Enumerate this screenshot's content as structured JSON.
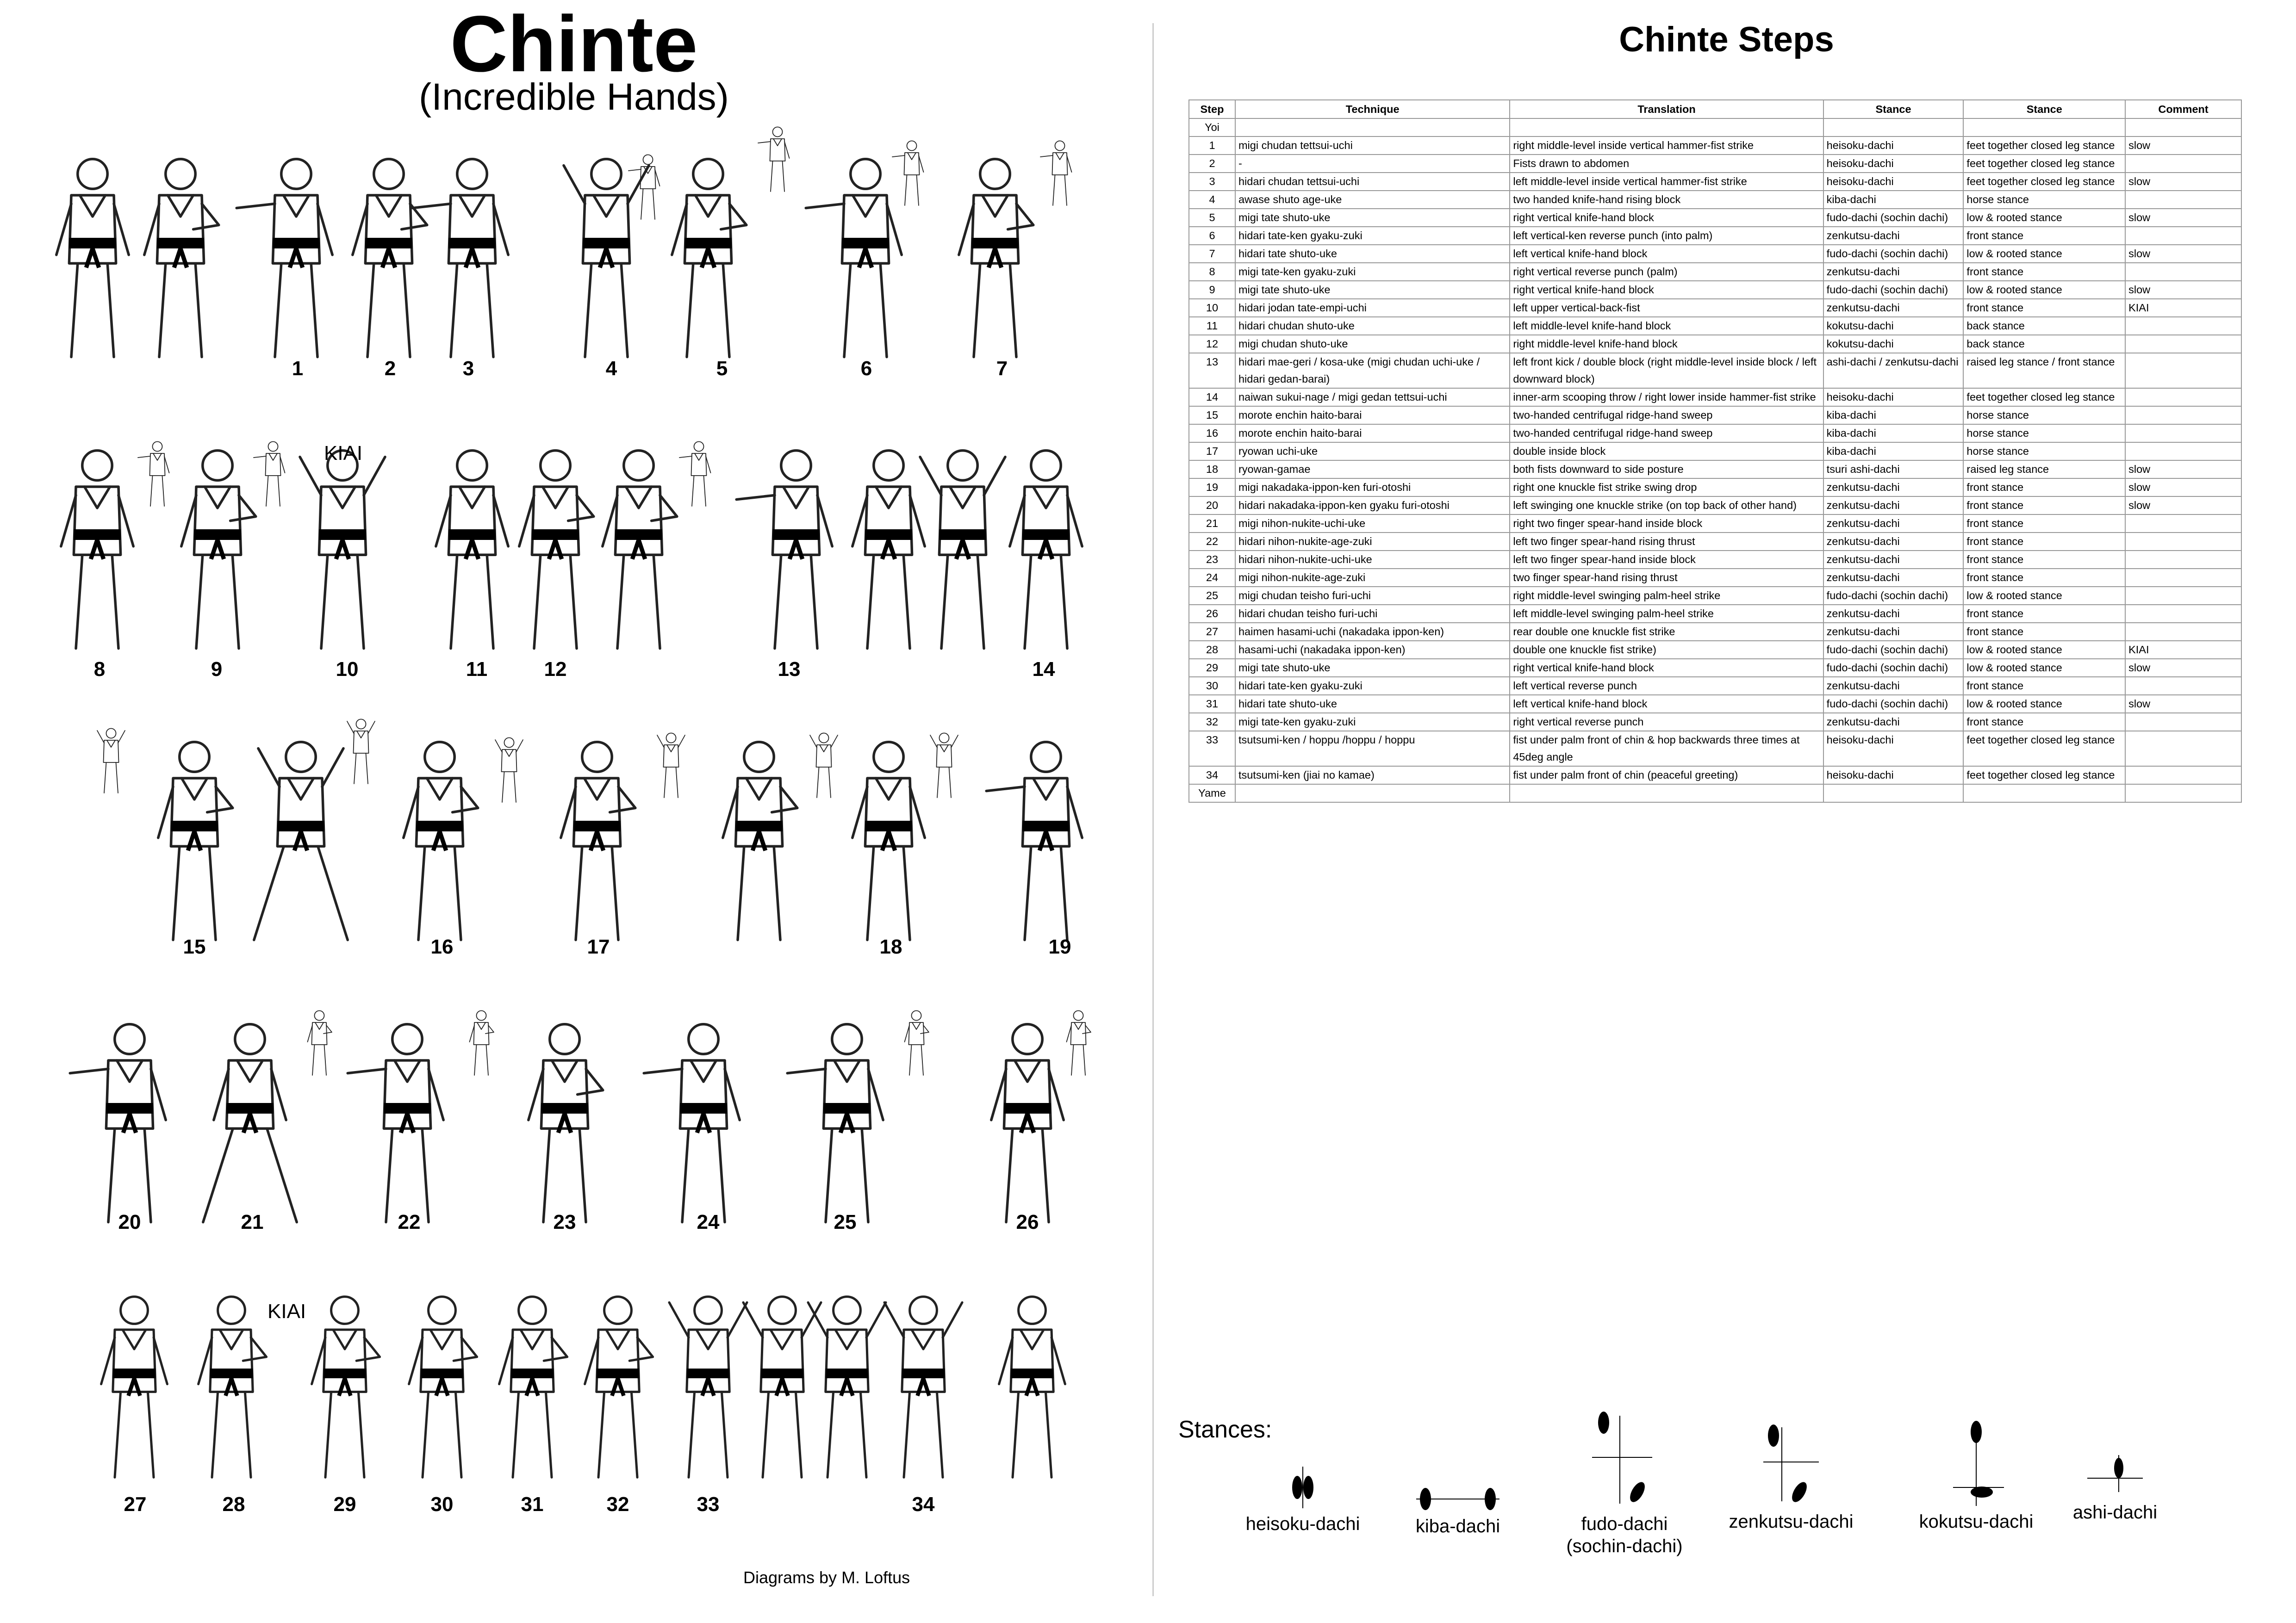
{
  "kata": {
    "title": "Chinte",
    "subtitle": "(Incredible Hands)",
    "credit": "Diagrams by M. Loftus",
    "kiai_label": "KIAI",
    "diagram_numbers": [
      "1",
      "2",
      "3",
      "4",
      "5",
      "6",
      "7",
      "8",
      "9",
      "10",
      "11",
      "12",
      "13",
      "14",
      "15",
      "16",
      "17",
      "18",
      "19",
      "20",
      "21",
      "22",
      "23",
      "24",
      "25",
      "26",
      "27",
      "28",
      "29",
      "30",
      "31",
      "32",
      "33",
      "34"
    ]
  },
  "steps": {
    "title": "Chinte Steps",
    "headers": [
      "Step",
      "Technique",
      "Translation",
      "Stance",
      "Stance",
      "Comment"
    ],
    "rows": [
      [
        "Yoi",
        "",
        "",
        "",
        "",
        ""
      ],
      [
        "1",
        "migi chudan tettsui-uchi",
        "right middle-level inside vertical hammer-fist strike",
        "heisoku-dachi",
        "feet together closed leg stance",
        "slow"
      ],
      [
        "2",
        "-",
        "Fists drawn to abdomen",
        "heisoku-dachi",
        "feet together closed leg stance",
        ""
      ],
      [
        "3",
        "hidari chudan tettsui-uchi",
        "left middle-level inside vertical hammer-fist strike",
        "heisoku-dachi",
        "feet together closed leg stance",
        "slow"
      ],
      [
        "4",
        "awase shuto age-uke",
        "two handed knife-hand rising block",
        "kiba-dachi",
        "horse stance",
        ""
      ],
      [
        "5",
        "migi tate shuto-uke",
        "right vertical knife-hand block",
        "fudo-dachi (sochin dachi)",
        "low & rooted stance",
        "slow"
      ],
      [
        "6",
        "hidari tate-ken gyaku-zuki",
        "left vertical-ken reverse punch (into palm)",
        "zenkutsu-dachi",
        "front stance",
        ""
      ],
      [
        "7",
        "hidari tate shuto-uke",
        "left vertical knife-hand block",
        "fudo-dachi (sochin dachi)",
        "low & rooted stance",
        "slow"
      ],
      [
        "8",
        "migi tate-ken gyaku-zuki",
        "right vertical reverse punch (palm)",
        "zenkutsu-dachi",
        "front stance",
        ""
      ],
      [
        "9",
        "migi tate shuto-uke",
        "right vertical knife-hand block",
        "fudo-dachi (sochin dachi)",
        "low & rooted stance",
        "slow"
      ],
      [
        "10",
        "hidari jodan tate-empi-uchi",
        "left upper vertical-back-fist",
        "zenkutsu-dachi",
        "front stance",
        "KIAI"
      ],
      [
        "11",
        "hidari chudan shuto-uke",
        "left middle-level knife-hand block",
        "kokutsu-dachi",
        "back stance",
        ""
      ],
      [
        "12",
        "migi chudan shuto-uke",
        "right middle-level knife-hand block",
        "kokutsu-dachi",
        "back stance",
        ""
      ],
      [
        "13",
        "hidari mae-geri / kosa-uke (migi chudan uchi-uke / hidari gedan-barai)",
        "left front kick / double block (right middle-level inside block / left downward block)",
        "ashi-dachi / zenkutsu-dachi",
        "raised leg stance / front stance",
        ""
      ],
      [
        "14",
        "naiwan sukui-nage / migi gedan tettsui-uchi",
        "inner-arm scooping throw / right lower inside hammer-fist strike",
        "heisoku-dachi",
        "feet together closed leg stance",
        ""
      ],
      [
        "15",
        "morote enchin haito-barai",
        "two-handed centrifugal ridge-hand sweep",
        "kiba-dachi",
        "horse stance",
        ""
      ],
      [
        "16",
        "morote enchin haito-barai",
        "two-handed centrifugal ridge-hand sweep",
        "kiba-dachi",
        "horse stance",
        ""
      ],
      [
        "17",
        "ryowan uchi-uke",
        "double inside block",
        "kiba-dachi",
        "horse stance",
        ""
      ],
      [
        "18",
        "ryowan-gamae",
        "both fists downward to side posture",
        "tsuri ashi-dachi",
        "raised leg stance",
        "slow"
      ],
      [
        "19",
        "migi nakadaka-ippon-ken furi-otoshi",
        "right one knuckle fist strike swing drop",
        "zenkutsu-dachi",
        "front stance",
        "slow"
      ],
      [
        "20",
        "hidari nakadaka-ippon-ken gyaku furi-otoshi",
        "left swinging one knuckle strike (on top back of other hand)",
        "zenkutsu-dachi",
        "front stance",
        "slow"
      ],
      [
        "21",
        "migi nihon-nukite-uchi-uke",
        "right two finger spear-hand inside block",
        "zenkutsu-dachi",
        "front stance",
        ""
      ],
      [
        "22",
        "hidari nihon-nukite-age-zuki",
        "left two finger spear-hand rising thrust",
        "zenkutsu-dachi",
        "front stance",
        ""
      ],
      [
        "23",
        "hidari nihon-nukite-uchi-uke",
        "left two finger spear-hand inside block",
        "zenkutsu-dachi",
        "front stance",
        ""
      ],
      [
        "24",
        "migi nihon-nukite-age-zuki",
        "two finger spear-hand rising thrust",
        "zenkutsu-dachi",
        "front stance",
        ""
      ],
      [
        "25",
        "migi chudan teisho furi-uchi",
        "right middle-level swinging palm-heel strike",
        "fudo-dachi (sochin dachi)",
        "low & rooted stance",
        ""
      ],
      [
        "26",
        "hidari chudan teisho furi-uchi",
        "left middle-level swinging palm-heel strike",
        "zenkutsu-dachi",
        "front stance",
        ""
      ],
      [
        "27",
        "haimen hasami-uchi (nakadaka ippon-ken)",
        "rear double one knuckle fist strike",
        "zenkutsu-dachi",
        "front stance",
        ""
      ],
      [
        "28",
        "hasami-uchi (nakadaka ippon-ken)",
        "double one knuckle fist strike)",
        "fudo-dachi (sochin dachi)",
        "low & rooted stance",
        "KIAI"
      ],
      [
        "29",
        "migi tate shuto-uke",
        "right vertical knife-hand block",
        "fudo-dachi (sochin dachi)",
        "low & rooted stance",
        "slow"
      ],
      [
        "30",
        "hidari tate-ken gyaku-zuki",
        "left vertical reverse punch",
        "zenkutsu-dachi",
        "front stance",
        ""
      ],
      [
        "31",
        "hidari tate shuto-uke",
        "left vertical knife-hand block",
        "fudo-dachi (sochin dachi)",
        "low & rooted stance",
        "slow"
      ],
      [
        "32",
        "migi tate-ken gyaku-zuki",
        "right vertical reverse punch",
        "zenkutsu-dachi",
        "front stance",
        ""
      ],
      [
        "33",
        "tsutsumi-ken / hoppu /hoppu / hoppu",
        "fist under palm front of chin & hop backwards three times at 45deg angle",
        "heisoku-dachi",
        "feet together closed leg stance",
        ""
      ],
      [
        "34",
        "tsutsumi-ken (jiai no kamae)",
        "fist under palm front of chin (peaceful greeting)",
        "heisoku-dachi",
        "feet together closed leg stance",
        ""
      ],
      [
        "Yame",
        "",
        "",
        "",
        "",
        ""
      ]
    ]
  },
  "stances": {
    "title": "Stances:",
    "items": [
      "heisoku-dachi",
      "kiba-dachi",
      "fudo-dachi",
      "(sochin-dachi)",
      "zenkutsu-dachi",
      "kokutsu-dachi",
      "ashi-dachi"
    ]
  }
}
